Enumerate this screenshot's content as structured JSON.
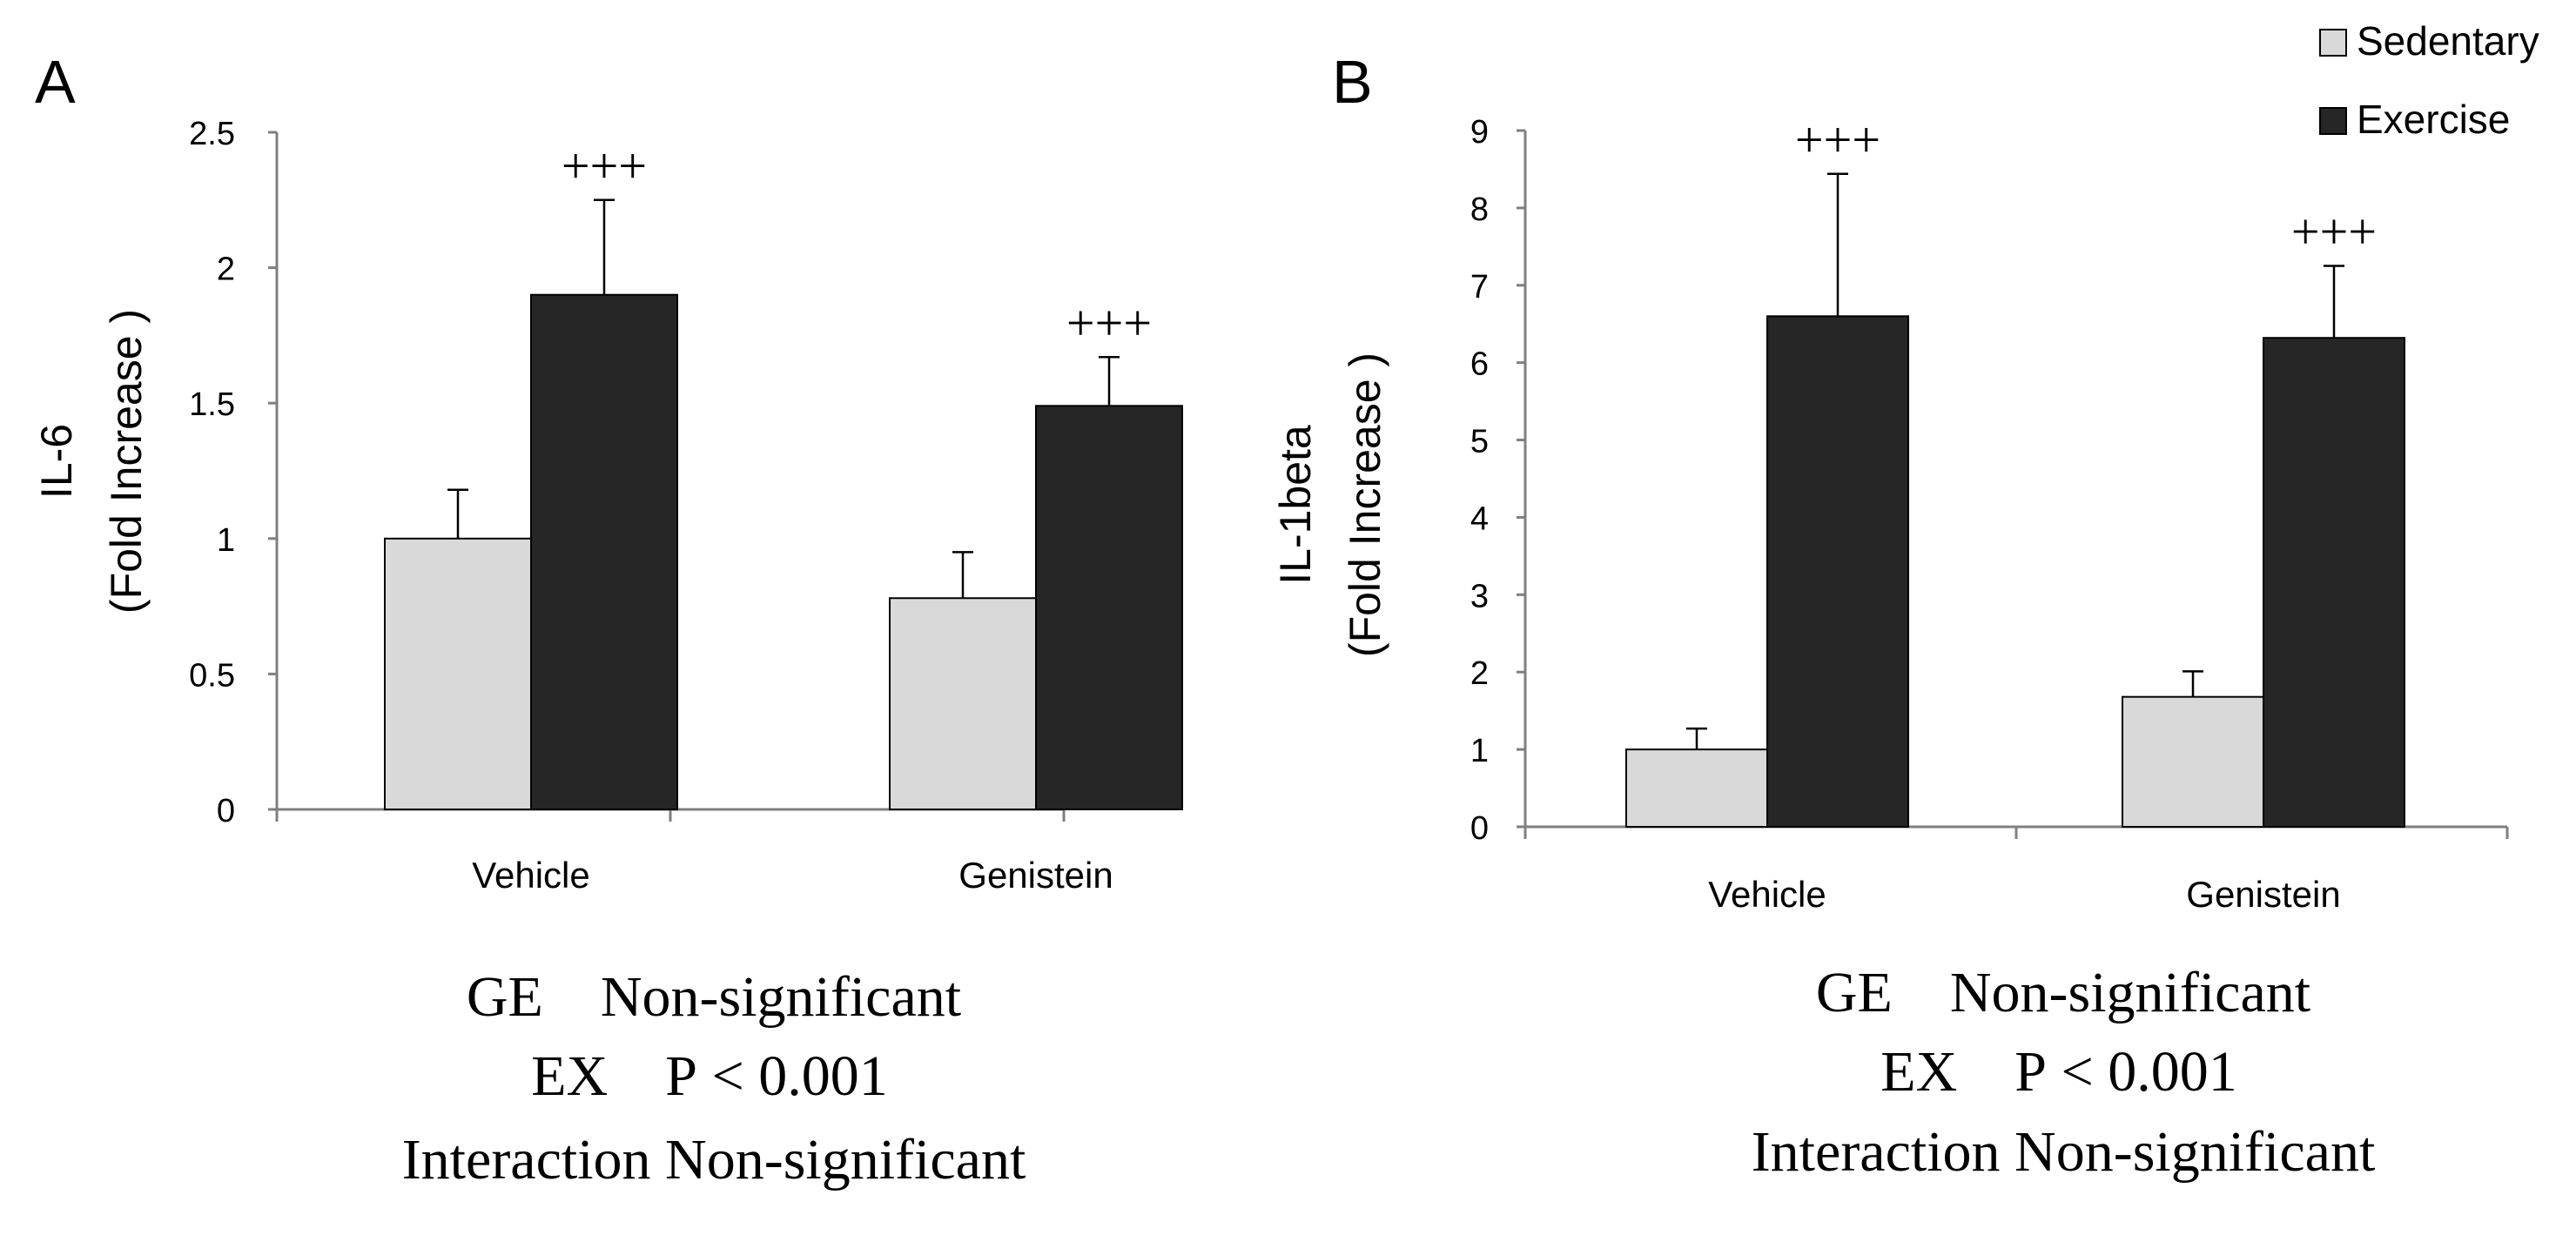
{
  "legend": {
    "items": [
      {
        "label": "Sedentary",
        "color": "#d9d9d9"
      },
      {
        "label": "Exercise",
        "color": "#262626"
      }
    ]
  },
  "chart_data": [
    {
      "panel": "A",
      "type": "bar",
      "ylabel_line1": "IL-6",
      "ylabel_line2": "(Fold Increase )",
      "categories": [
        "Vehicle",
        "Genistein"
      ],
      "ylim": [
        0,
        2.5
      ],
      "yticks": [
        0,
        0.5,
        1,
        1.5,
        2,
        2.5
      ],
      "ytick_labels": [
        "0",
        "0.5",
        "1",
        "1.5",
        "2",
        "2.5"
      ],
      "series": [
        {
          "name": "Sedentary",
          "values": [
            1.0,
            0.78
          ],
          "errors": [
            0.18,
            0.17
          ],
          "sig": [
            "",
            ""
          ]
        },
        {
          "name": "Exercise",
          "values": [
            1.9,
            1.49
          ],
          "errors": [
            0.35,
            0.18
          ],
          "sig": [
            "+++",
            "+++"
          ]
        }
      ],
      "stats": [
        "GE    Non-significant",
        "EX    P < 0.001",
        "Interaction Non-significant"
      ]
    },
    {
      "panel": "B",
      "type": "bar",
      "ylabel_line1": "IL-1beta",
      "ylabel_line2": "(Fold Increase )",
      "categories": [
        "Vehicle",
        "Genistein"
      ],
      "ylim": [
        0,
        9
      ],
      "yticks": [
        0,
        1,
        2,
        3,
        4,
        5,
        6,
        7,
        8,
        9
      ],
      "ytick_labels": [
        "0",
        "1",
        "2",
        "3",
        "4",
        "5",
        "6",
        "7",
        "8",
        "9"
      ],
      "series": [
        {
          "name": "Sedentary",
          "values": [
            1.0,
            1.68
          ],
          "errors": [
            0.27,
            0.33
          ],
          "sig": [
            "",
            ""
          ]
        },
        {
          "name": "Exercise",
          "values": [
            6.6,
            6.32
          ],
          "errors": [
            1.84,
            0.93
          ],
          "sig": [
            "+++",
            "+++"
          ]
        }
      ],
      "stats": [
        "GE    Non-significant",
        "EX    P < 0.001",
        "Interaction Non-significant"
      ]
    }
  ]
}
